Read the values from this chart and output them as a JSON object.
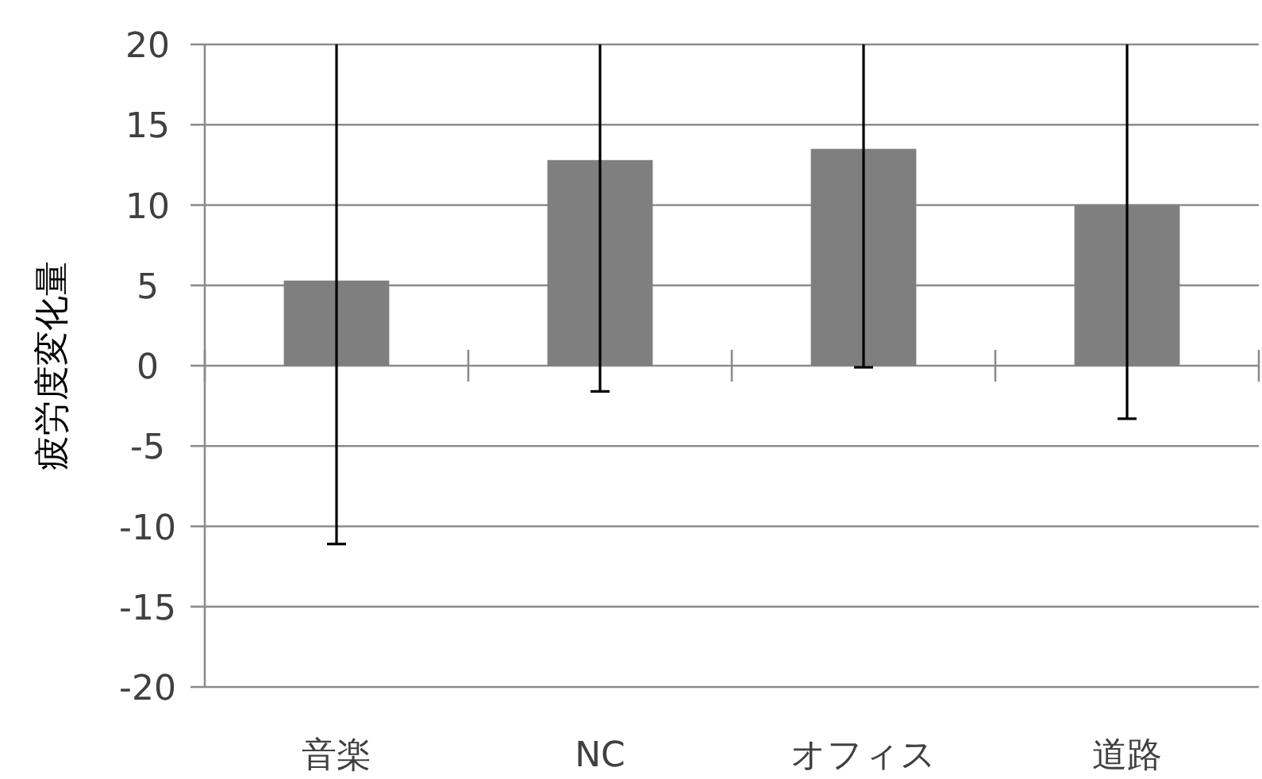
{
  "chart_data": {
    "type": "bar",
    "ylabel": "疲労度変化量",
    "categories": [
      "音楽",
      "NC",
      "オフィス",
      "道路"
    ],
    "values": [
      5.3,
      12.8,
      13.5,
      10.0
    ],
    "errors": [
      [
        -11.1,
        20
      ],
      [
        -1.6,
        20
      ],
      [
        -0.1,
        20
      ],
      [
        -3.3,
        20
      ]
    ],
    "color": "#7f7f7f",
    "ylim": [
      -20,
      20
    ],
    "yticks": [
      -20,
      -15,
      -10,
      -5,
      0,
      5,
      10,
      15,
      20
    ],
    "grid": "y"
  }
}
